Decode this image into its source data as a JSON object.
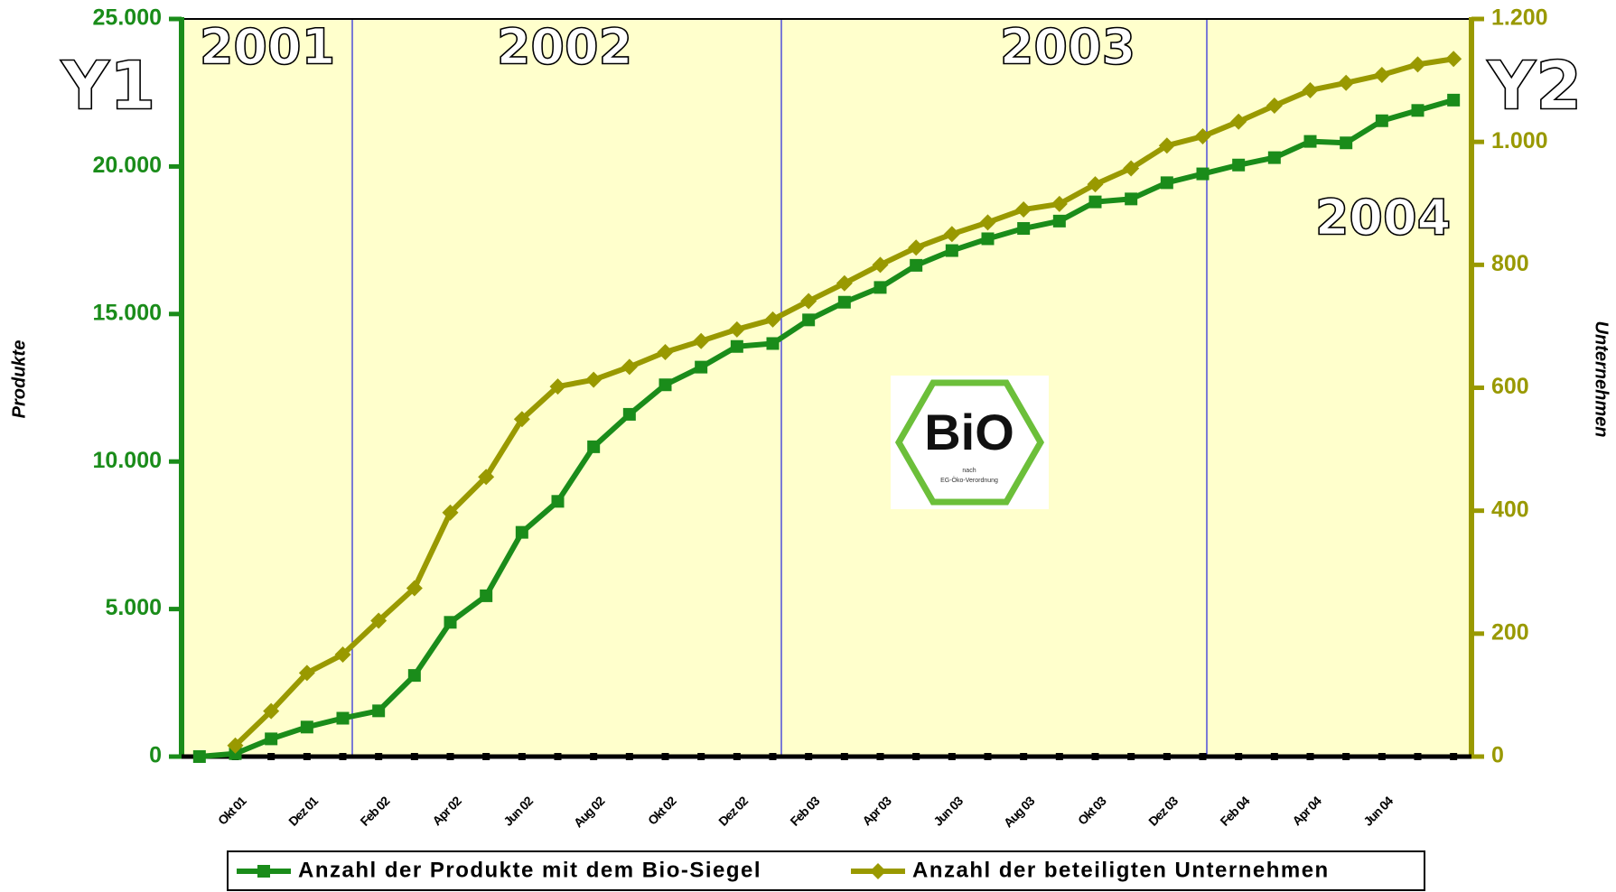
{
  "chart_data": {
    "type": "line",
    "y_label": "Produkte",
    "y2_label": "Unternehmen",
    "annotations": [
      "2001",
      "2002",
      "2003",
      "2004"
    ],
    "axis_marks": [
      "Y1",
      "Y2"
    ],
    "logo_text": [
      "BiO",
      "nach",
      "EG-Öko-Verordnung"
    ],
    "categories": [
      null,
      "Okt 01",
      null,
      "Dez 01",
      null,
      "Feb 02",
      null,
      "Apr 02",
      null,
      "Jun 02",
      null,
      "Aug 02",
      null,
      "Okt 02",
      null,
      "Dez 02",
      null,
      "Feb 03",
      null,
      "Apr 03",
      null,
      "Jun 03",
      null,
      "Aug 03",
      null,
      "Okt 03",
      null,
      "Dez 03",
      null,
      "Feb 04",
      null,
      "Apr 04",
      null,
      "Jun 04",
      null,
      null
    ],
    "series": [
      {
        "name": "Anzahl der Produkte mit dem Bio-Siegel",
        "color": "#1a8c1a",
        "marker": "square",
        "values": [
          0,
          100,
          600,
          1000,
          1300,
          1550,
          2750,
          4550,
          5450,
          7600,
          8650,
          10500,
          11600,
          12600,
          13200,
          13900,
          14000,
          14800,
          15400,
          15900,
          16650,
          17150,
          17550,
          17900,
          18150,
          18800,
          18900,
          19450,
          19750,
          20050,
          20300,
          20850,
          20800,
          21550,
          21900,
          22250
        ]
      },
      {
        "name": "Anzahl der beteiligten Unternehmen",
        "color": "#999900",
        "marker": "diamond",
        "axis": "y2",
        "values": [
          null,
          18,
          74,
          136,
          166,
          221,
          274,
          397,
          455,
          549,
          602,
          613,
          634,
          658,
          676,
          695,
          711,
          741,
          770,
          800,
          828,
          850,
          869,
          890,
          899,
          931,
          957,
          994,
          1009,
          1033,
          1059,
          1084,
          1096,
          1109,
          1126,
          1135
        ]
      }
    ],
    "ylim": [
      0,
      25000
    ],
    "yticks": [
      0,
      {
        "value": 5000,
        "label": "5.000"
      },
      {
        "value": 10000,
        "label": "10.000"
      },
      {
        "value": 15000,
        "label": "15.000"
      },
      {
        "value": 20000,
        "label": "20.000"
      },
      {
        "value": 25000,
        "label": "25.000"
      }
    ],
    "y2lim": [
      0,
      1200
    ],
    "y2ticks": [
      0,
      200,
      400,
      600,
      800,
      {
        "value": 1000,
        "label": "1.000"
      },
      {
        "value": 1200,
        "label": "1.200"
      }
    ],
    "y_color": "#1a8c1a",
    "y2_color": "#999900",
    "background": "#ffffcc"
  }
}
